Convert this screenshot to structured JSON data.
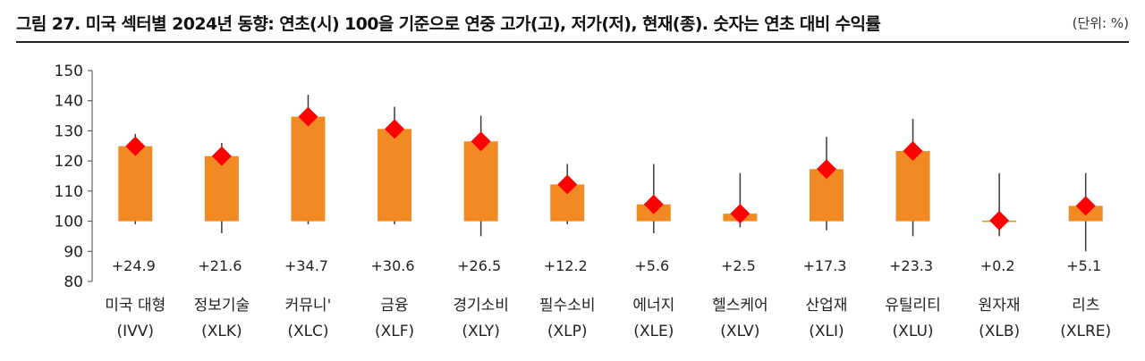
{
  "chart_data": {
    "type": "bar",
    "title": "그림 27. 미국 섹터별 2024년 동향: 연초(시) 100을 기준으로 연중 고가(고), 저가(저), 현재(종). 숫자는 연초 대비 수익률",
    "unit_label": "(단위: %)",
    "baseline": 100,
    "ylim": [
      80,
      150
    ],
    "yticks": [
      80,
      90,
      100,
      110,
      120,
      130,
      140,
      150
    ],
    "categories": [
      {
        "name": "미국 대형",
        "ticker": "(IVV)"
      },
      {
        "name": "정보기술",
        "ticker": "(XLK)"
      },
      {
        "name": "커뮤니'",
        "ticker": "(XLC)"
      },
      {
        "name": "금융",
        "ticker": "(XLF)"
      },
      {
        "name": "경기소비",
        "ticker": "(XLY)"
      },
      {
        "name": "필수소비",
        "ticker": "(XLP)"
      },
      {
        "name": "에너지",
        "ticker": "(XLE)"
      },
      {
        "name": "헬스케어",
        "ticker": "(XLV)"
      },
      {
        "name": "산업재",
        "ticker": "(XLI)"
      },
      {
        "name": "유틸리티",
        "ticker": "(XLU)"
      },
      {
        "name": "원자재",
        "ticker": "(XLB)"
      },
      {
        "name": "리츠",
        "ticker": "(XLRE)"
      }
    ],
    "series": [
      {
        "name": "시",
        "values": [
          100,
          100,
          100,
          100,
          100,
          100,
          100,
          100,
          100,
          100,
          100,
          100
        ]
      },
      {
        "name": "고",
        "values": [
          129,
          126,
          142,
          138,
          135,
          119,
          119,
          116,
          128,
          134,
          116,
          116
        ]
      },
      {
        "name": "저",
        "values": [
          99,
          96,
          99,
          99,
          95,
          99,
          96,
          98,
          97,
          95,
          95,
          90
        ]
      },
      {
        "name": "종",
        "values": [
          124.9,
          121.6,
          134.7,
          130.6,
          126.5,
          112.2,
          105.6,
          102.5,
          117.3,
          123.3,
          100.2,
          105.1
        ]
      }
    ],
    "labels": [
      "+24.9",
      "+21.6",
      "+34.7",
      "+30.6",
      "+26.5",
      "+12.2",
      "+5.6",
      "+2.5",
      "+17.3",
      "+23.3",
      "+0.2",
      "+5.1"
    ],
    "colors": {
      "bar": "#F28A24",
      "marker": "#FF0000",
      "whisker": "#3a3a3a"
    }
  }
}
